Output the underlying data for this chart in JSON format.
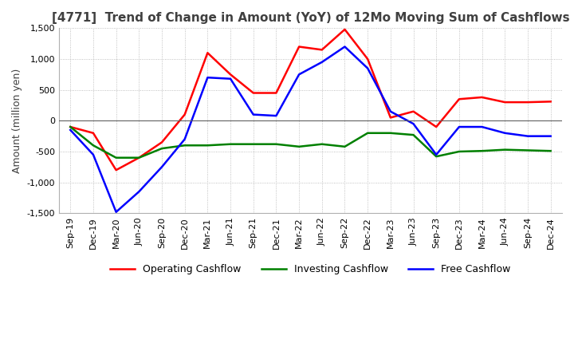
{
  "title": "[4771]  Trend of Change in Amount (YoY) of 12Mo Moving Sum of Cashflows",
  "ylabel": "Amount (million yen)",
  "ylim": [
    -1500,
    1500
  ],
  "yticks": [
    -1500,
    -1000,
    -500,
    0,
    500,
    1000,
    1500
  ],
  "x_labels": [
    "Sep-19",
    "Dec-19",
    "Mar-20",
    "Jun-20",
    "Sep-20",
    "Dec-20",
    "Mar-21",
    "Jun-21",
    "Sep-21",
    "Dec-21",
    "Mar-22",
    "Jun-22",
    "Sep-22",
    "Dec-22",
    "Mar-23",
    "Jun-23",
    "Sep-23",
    "Dec-23",
    "Mar-24",
    "Jun-24",
    "Sep-24",
    "Dec-24"
  ],
  "operating": [
    -100,
    -200,
    -800,
    -600,
    -350,
    100,
    1100,
    750,
    450,
    450,
    1200,
    1150,
    1480,
    1000,
    50,
    150,
    -100,
    350,
    380,
    300,
    300,
    310
  ],
  "investing": [
    -100,
    -400,
    -600,
    -600,
    -450,
    -400,
    -400,
    -380,
    -380,
    -380,
    -420,
    -380,
    -420,
    -200,
    -200,
    -230,
    -580,
    -500,
    -490,
    -470,
    -480,
    -490
  ],
  "free": [
    -150,
    -550,
    -1480,
    -1150,
    -750,
    -300,
    700,
    680,
    100,
    80,
    750,
    950,
    1200,
    850,
    150,
    -50,
    -550,
    -100,
    -100,
    -200,
    -250,
    -250
  ],
  "operating_color": "#ff0000",
  "investing_color": "#008000",
  "free_color": "#0000ff",
  "bg_color": "#ffffff",
  "grid_color": "#b0b0b0",
  "title_color": "#404040",
  "title_fontsize": 11,
  "ylabel_fontsize": 9,
  "tick_fontsize": 8,
  "legend_fontsize": 9,
  "linewidth": 1.8
}
